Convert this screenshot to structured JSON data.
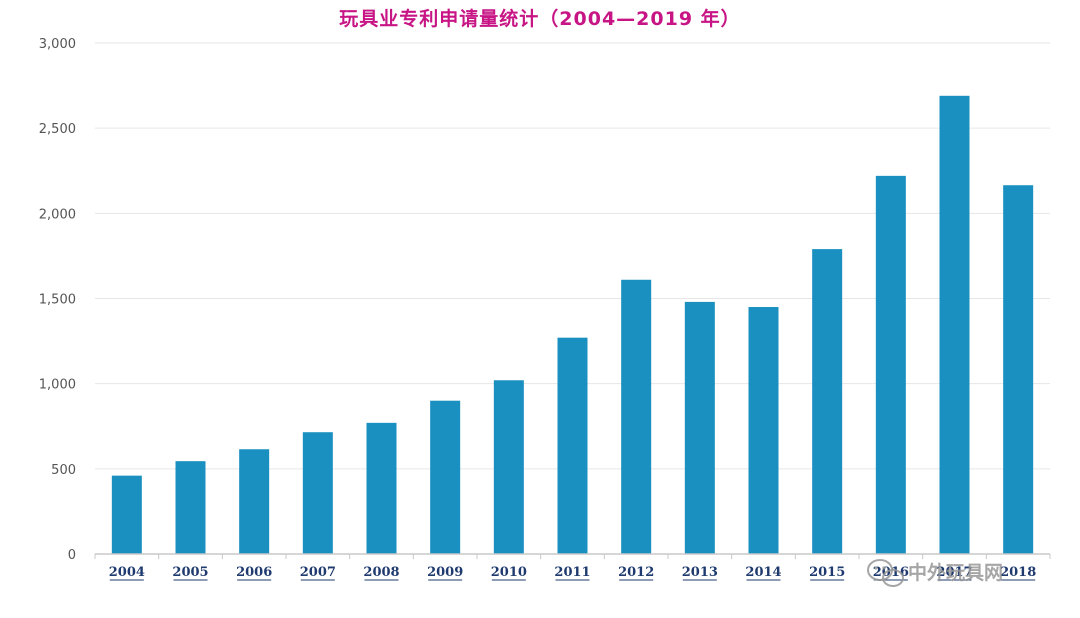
{
  "chart_data": {
    "type": "bar",
    "title": "玩具业专利申请量统计（2004—2019 年）",
    "categories": [
      "2004",
      "2005",
      "2006",
      "2007",
      "2008",
      "2009",
      "2010",
      "2011",
      "2012",
      "2013",
      "2014",
      "2015",
      "2016",
      "2017",
      "2018"
    ],
    "values": [
      460,
      545,
      615,
      715,
      770,
      900,
      1020,
      1270,
      1610,
      1480,
      1450,
      1790,
      2220,
      2690,
      2165
    ],
    "ylim": [
      0,
      3000
    ],
    "yticks": [
      0,
      500,
      1000,
      1500,
      2000,
      2500,
      3000
    ],
    "ytick_labels": [
      "0",
      "500",
      "1,000",
      "1,500",
      "2,000",
      "2,500",
      "3,000"
    ],
    "xlabel": "",
    "ylabel": "",
    "grid": true,
    "bar_color": "#1a90c0",
    "title_color": "#c71585"
  },
  "watermark": {
    "text": "中外玩具网",
    "icon": "wechat-icon"
  }
}
